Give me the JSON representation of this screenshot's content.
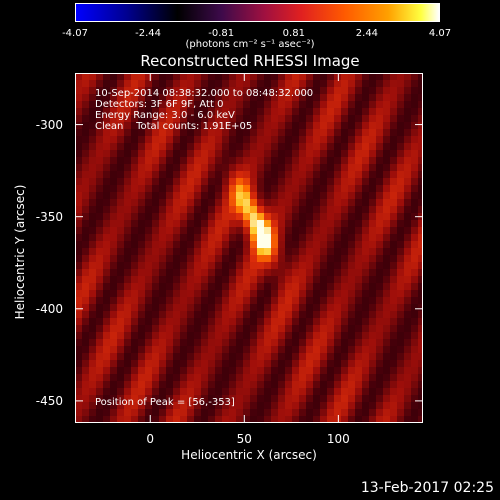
{
  "chart_data": {
    "type": "heatmap",
    "title": "Reconstructed RHESSI Image",
    "xlabel": "Heliocentric X (arcsec)",
    "ylabel": "Heliocentric Y (arcsec)",
    "xlim": [
      -40,
      145
    ],
    "ylim": [
      -462,
      -272
    ],
    "x_ticks": [
      "0",
      "50",
      "100"
    ],
    "x_tick_values": [
      0,
      50,
      100
    ],
    "y_ticks": [
      "-300",
      "-350",
      "-400",
      "-450"
    ],
    "y_tick_values": [
      -300,
      -350,
      -400,
      -450
    ],
    "colorbar": {
      "ticks": [
        "-4.07",
        "-2.44",
        "-0.81",
        "0.81",
        "2.44",
        "4.07"
      ],
      "tick_values": [
        -4.07,
        -2.44,
        -0.81,
        0.81,
        2.44,
        4.07
      ],
      "units": "(photons cm⁻² s⁻¹ asec⁻²)",
      "range": [
        -4.07,
        4.07
      ]
    },
    "annotations": {
      "time": "10-Sep-2014 08:38:32.000 to 08:48:32.000",
      "detectors": "Detectors: 3F 6F 9F, Att 0",
      "energy": "Energy Range: 3.0 - 6.0 keV",
      "clean": "Clean    Total counts: 1.91E+05",
      "peak": "Position of Peak = [56,-353]"
    },
    "peak": {
      "x": 56,
      "y": -353
    },
    "grid": false
  },
  "footer": {
    "date": "13-Feb-2017 02:25"
  }
}
